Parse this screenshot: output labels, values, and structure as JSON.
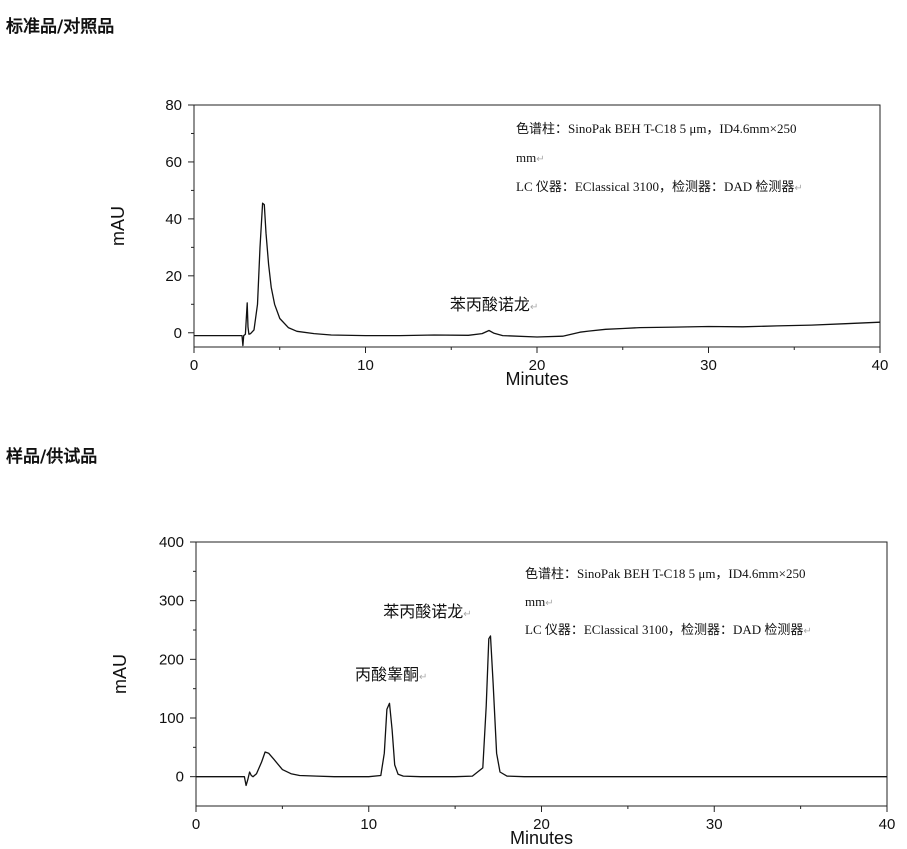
{
  "sections": [
    {
      "title": "标准品/对照品"
    },
    {
      "title": "样品/供试品"
    }
  ],
  "return_mark": "↵",
  "chart_data": [
    {
      "type": "line",
      "xlabel": "Minutes",
      "ylabel": "mAU",
      "xlim": [
        0,
        40
      ],
      "ylim": [
        -5,
        80
      ],
      "xticks": [
        0,
        10,
        20,
        30,
        40
      ],
      "yticks": [
        0,
        20,
        40,
        60,
        80
      ],
      "annotations": [
        {
          "text": "色谱柱：SinoPak BEH T-C18 5 μm，ID4.6mm×250",
          "mark": false
        },
        {
          "text": "mm",
          "mark": true
        },
        {
          "text": "LC 仪器：EClassical 3100，检测器：DAD 检测器",
          "mark": true
        }
      ],
      "peak_labels": [
        {
          "text": "苯丙酸诺龙",
          "x": 17.5,
          "y": 8
        }
      ],
      "series": [
        {
          "x": [
            0,
            2.8,
            2.85,
            2.9,
            3.0,
            3.1,
            3.15,
            3.2,
            3.3,
            3.5,
            3.7,
            3.85,
            4.0,
            4.1,
            4.2,
            4.35,
            4.5,
            4.7,
            5.0,
            5.5,
            6.0,
            7.0,
            8.0,
            10,
            12,
            14,
            16,
            16.8,
            17.2,
            17.5,
            18,
            20,
            21.5,
            22,
            22.5,
            23,
            24,
            25,
            26,
            27,
            28,
            30,
            32,
            34,
            36,
            38,
            40
          ],
          "y": [
            -1,
            -1,
            -4.5,
            -1,
            -0.5,
            10.5,
            2,
            -0.5,
            -0.3,
            1,
            10,
            30,
            45.5,
            45,
            35,
            24,
            16,
            10,
            5,
            1.8,
            0.5,
            -0.3,
            -0.8,
            -1,
            -1,
            -0.8,
            -0.9,
            -0.3,
            0.8,
            -0.2,
            -1,
            -1.5,
            -1.2,
            -0.5,
            0.2,
            0.6,
            1.2,
            1.5,
            1.8,
            1.9,
            2.0,
            2.2,
            2.1,
            2.4,
            2.7,
            3.2,
            3.7
          ]
        }
      ]
    },
    {
      "type": "line",
      "xlabel": "Minutes",
      "ylabel": "mAU",
      "xlim": [
        0,
        40
      ],
      "ylim": [
        -50,
        400
      ],
      "xticks": [
        0,
        10,
        20,
        30,
        40
      ],
      "yticks": [
        0,
        100,
        200,
        300,
        400
      ],
      "annotations": [
        {
          "text": "色谱柱：SinoPak BEH T-C18 5 μm，ID4.6mm×250",
          "mark": false
        },
        {
          "text": "mm",
          "mark": true
        },
        {
          "text": "LC 仪器：EClassical 3100，检测器：DAD 检测器",
          "mark": true
        }
      ],
      "peak_labels": [
        {
          "text": "苯丙酸诺龙",
          "x": 13.4,
          "y": 272
        },
        {
          "text": "丙酸睾酮",
          "x": 11.3,
          "y": 165
        }
      ],
      "series": [
        {
          "x": [
            0,
            2.8,
            2.9,
            3.0,
            3.1,
            3.2,
            3.3,
            3.5,
            3.8,
            4.0,
            4.2,
            4.5,
            5.0,
            5.5,
            6.0,
            7.0,
            8.0,
            9.0,
            10.0,
            10.7,
            10.9,
            11.05,
            11.2,
            11.35,
            11.5,
            11.7,
            12.0,
            13.0,
            14.0,
            15.0,
            16.0,
            16.6,
            16.8,
            16.95,
            17.05,
            17.2,
            17.4,
            17.6,
            18.0,
            19.0,
            20.0,
            25,
            30,
            35,
            40
          ],
          "y": [
            0,
            0,
            -15,
            -5,
            8,
            2,
            0,
            5,
            25,
            42,
            40,
            30,
            12,
            5,
            2,
            1,
            0,
            0,
            0,
            2,
            40,
            115,
            125,
            80,
            20,
            4,
            1,
            0,
            0,
            0,
            1,
            15,
            120,
            235,
            240,
            160,
            40,
            8,
            1,
            0,
            0,
            0,
            0,
            0,
            0
          ]
        }
      ]
    }
  ]
}
